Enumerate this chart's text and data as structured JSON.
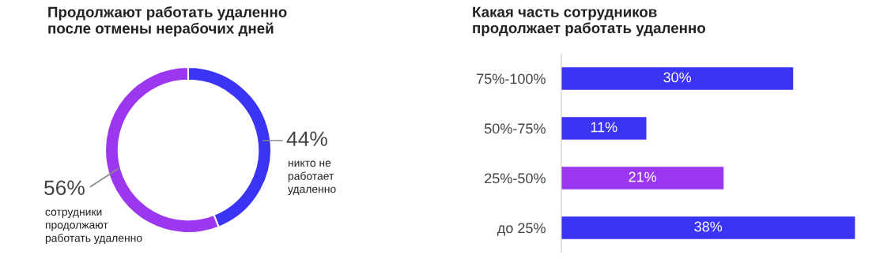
{
  "chart_data": [
    {
      "type": "donut",
      "title": "Продолжают работать удаленно\nпосле отмены нерабочих дней",
      "categories": [
        "никто не\nработает\nудаленно",
        "сотрудники\nпродолжают\nработать удаленно"
      ],
      "values": [
        44,
        56
      ],
      "colors": [
        "#3b34f4",
        "#9a37ef"
      ],
      "value_labels": [
        "44%",
        "56%"
      ]
    },
    {
      "type": "bar",
      "orientation": "horizontal",
      "title": "Какая часть сотрудников\nпродолжает работать удаленно",
      "categories": [
        "75%-100%",
        "50%-75%",
        "25%-50%",
        "до 25%"
      ],
      "values": [
        30,
        11,
        21,
        38
      ],
      "colors": [
        "#3b34f4",
        "#3b34f4",
        "#9a37ef",
        "#3b34f4"
      ],
      "value_labels": [
        "30%",
        "11%",
        "21%",
        "38%"
      ]
    }
  ]
}
